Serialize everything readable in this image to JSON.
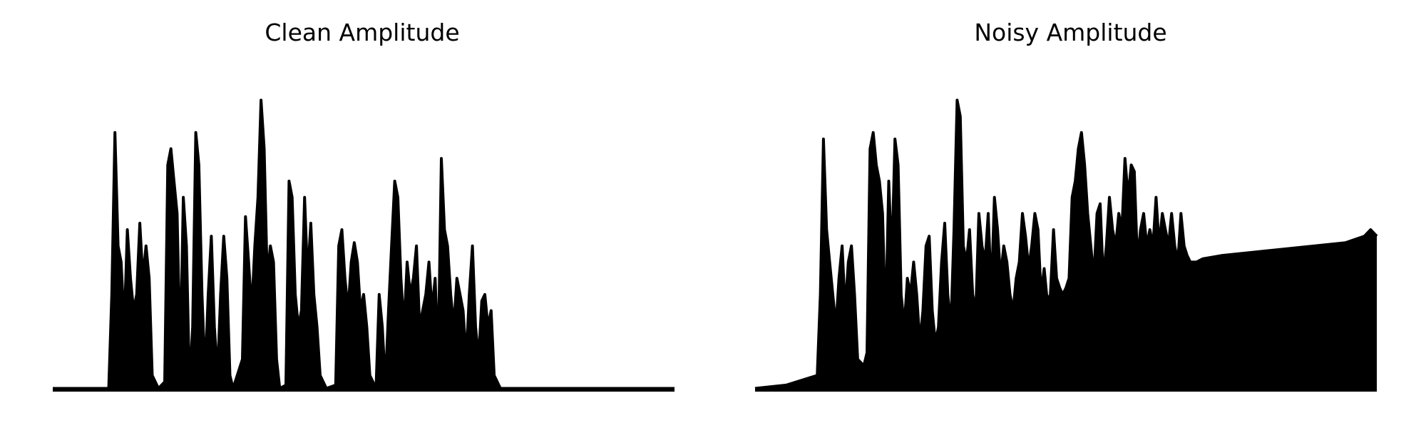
{
  "chart_data": [
    {
      "type": "line",
      "title": "Clean Amplitude",
      "xlabel": "",
      "ylabel": "",
      "axes_visible": false,
      "grid": false,
      "ylim": [
        0,
        1
      ],
      "color": "#000000",
      "points": [
        [
          0,
          0.01
        ],
        [
          0.09,
          0.01
        ],
        [
          0.095,
          0.3
        ],
        [
          0.1,
          0.8
        ],
        [
          0.105,
          0.45
        ],
        [
          0.11,
          0.4
        ],
        [
          0.115,
          0.2
        ],
        [
          0.12,
          0.5
        ],
        [
          0.125,
          0.35
        ],
        [
          0.13,
          0.25
        ],
        [
          0.135,
          0.3
        ],
        [
          0.14,
          0.52
        ],
        [
          0.145,
          0.35
        ],
        [
          0.15,
          0.45
        ],
        [
          0.155,
          0.35
        ],
        [
          0.16,
          0.05
        ],
        [
          0.17,
          0.01
        ],
        [
          0.18,
          0.03
        ],
        [
          0.185,
          0.7
        ],
        [
          0.19,
          0.75
        ],
        [
          0.195,
          0.65
        ],
        [
          0.2,
          0.55
        ],
        [
          0.205,
          0.1
        ],
        [
          0.21,
          0.6
        ],
        [
          0.215,
          0.45
        ],
        [
          0.22,
          0.02
        ],
        [
          0.225,
          0.2
        ],
        [
          0.23,
          0.8
        ],
        [
          0.235,
          0.7
        ],
        [
          0.24,
          0.3
        ],
        [
          0.245,
          0.05
        ],
        [
          0.25,
          0.3
        ],
        [
          0.255,
          0.48
        ],
        [
          0.26,
          0.2
        ],
        [
          0.265,
          0.05
        ],
        [
          0.27,
          0.3
        ],
        [
          0.275,
          0.48
        ],
        [
          0.28,
          0.35
        ],
        [
          0.285,
          0.05
        ],
        [
          0.29,
          0.01
        ],
        [
          0.305,
          0.1
        ],
        [
          0.31,
          0.54
        ],
        [
          0.315,
          0.4
        ],
        [
          0.32,
          0.25
        ],
        [
          0.325,
          0.45
        ],
        [
          0.33,
          0.6
        ],
        [
          0.335,
          0.9
        ],
        [
          0.34,
          0.75
        ],
        [
          0.345,
          0.35
        ],
        [
          0.35,
          0.45
        ],
        [
          0.355,
          0.4
        ],
        [
          0.36,
          0.1
        ],
        [
          0.365,
          0.01
        ],
        [
          0.375,
          0.02
        ],
        [
          0.38,
          0.65
        ],
        [
          0.385,
          0.6
        ],
        [
          0.39,
          0.3
        ],
        [
          0.395,
          0.2
        ],
        [
          0.4,
          0.25
        ],
        [
          0.405,
          0.6
        ],
        [
          0.41,
          0.35
        ],
        [
          0.415,
          0.52
        ],
        [
          0.42,
          0.3
        ],
        [
          0.425,
          0.2
        ],
        [
          0.43,
          0.05
        ],
        [
          0.44,
          0.01
        ],
        [
          0.455,
          0.02
        ],
        [
          0.46,
          0.45
        ],
        [
          0.465,
          0.5
        ],
        [
          0.47,
          0.35
        ],
        [
          0.475,
          0.25
        ],
        [
          0.48,
          0.4
        ],
        [
          0.485,
          0.46
        ],
        [
          0.49,
          0.4
        ],
        [
          0.495,
          0.25
        ],
        [
          0.5,
          0.3
        ],
        [
          0.505,
          0.2
        ],
        [
          0.51,
          0.05
        ],
        [
          0.52,
          0.01
        ],
        [
          0.525,
          0.3
        ],
        [
          0.53,
          0.2
        ],
        [
          0.535,
          0.02
        ],
        [
          0.54,
          0.25
        ],
        [
          0.545,
          0.45
        ],
        [
          0.55,
          0.65
        ],
        [
          0.555,
          0.6
        ],
        [
          0.56,
          0.35
        ],
        [
          0.565,
          0.2
        ],
        [
          0.57,
          0.4
        ],
        [
          0.575,
          0.3
        ],
        [
          0.58,
          0.35
        ],
        [
          0.585,
          0.45
        ],
        [
          0.59,
          0.2
        ],
        [
          0.595,
          0.25
        ],
        [
          0.6,
          0.3
        ],
        [
          0.605,
          0.4
        ],
        [
          0.61,
          0.25
        ],
        [
          0.615,
          0.35
        ],
        [
          0.62,
          0.1
        ],
        [
          0.625,
          0.72
        ],
        [
          0.63,
          0.5
        ],
        [
          0.635,
          0.45
        ],
        [
          0.64,
          0.3
        ],
        [
          0.645,
          0.2
        ],
        [
          0.65,
          0.35
        ],
        [
          0.655,
          0.3
        ],
        [
          0.66,
          0.25
        ],
        [
          0.665,
          0.1
        ],
        [
          0.67,
          0.3
        ],
        [
          0.675,
          0.45
        ],
        [
          0.68,
          0.2
        ],
        [
          0.685,
          0.1
        ],
        [
          0.69,
          0.28
        ],
        [
          0.695,
          0.3
        ],
        [
          0.7,
          0.2
        ],
        [
          0.705,
          0.25
        ],
        [
          0.71,
          0.05
        ],
        [
          0.72,
          0.01
        ],
        [
          1,
          0.01
        ]
      ]
    },
    {
      "type": "line",
      "title": "Noisy Amplitude",
      "xlabel": "",
      "ylabel": "",
      "axes_visible": false,
      "grid": false,
      "ylim": [
        0,
        1
      ],
      "color": "#000000",
      "fill_floor": [
        [
          0,
          0
        ],
        [
          0.1,
          0.04
        ],
        [
          0.2,
          0.08
        ],
        [
          0.3,
          0.12
        ],
        [
          0.4,
          0.16
        ],
        [
          0.5,
          0.2
        ],
        [
          0.6,
          0.25
        ],
        [
          0.7,
          0.3
        ],
        [
          0.8,
          0.35
        ],
        [
          0.9,
          0.38
        ],
        [
          1,
          0.4
        ]
      ],
      "points": [
        [
          0,
          0.01
        ],
        [
          0.05,
          0.02
        ],
        [
          0.1,
          0.05
        ],
        [
          0.105,
          0.3
        ],
        [
          0.11,
          0.78
        ],
        [
          0.115,
          0.5
        ],
        [
          0.12,
          0.4
        ],
        [
          0.125,
          0.3
        ],
        [
          0.13,
          0.2
        ],
        [
          0.135,
          0.35
        ],
        [
          0.14,
          0.45
        ],
        [
          0.145,
          0.25
        ],
        [
          0.15,
          0.4
        ],
        [
          0.155,
          0.45
        ],
        [
          0.16,
          0.3
        ],
        [
          0.165,
          0.1
        ],
        [
          0.175,
          0.08
        ],
        [
          0.18,
          0.12
        ],
        [
          0.185,
          0.75
        ],
        [
          0.19,
          0.8
        ],
        [
          0.195,
          0.7
        ],
        [
          0.2,
          0.65
        ],
        [
          0.205,
          0.55
        ],
        [
          0.21,
          0.2
        ],
        [
          0.215,
          0.65
        ],
        [
          0.22,
          0.4
        ],
        [
          0.225,
          0.78
        ],
        [
          0.23,
          0.7
        ],
        [
          0.235,
          0.3
        ],
        [
          0.24,
          0.2
        ],
        [
          0.245,
          0.35
        ],
        [
          0.25,
          0.3
        ],
        [
          0.255,
          0.4
        ],
        [
          0.26,
          0.3
        ],
        [
          0.265,
          0.15
        ],
        [
          0.27,
          0.25
        ],
        [
          0.275,
          0.45
        ],
        [
          0.28,
          0.48
        ],
        [
          0.285,
          0.25
        ],
        [
          0.29,
          0.15
        ],
        [
          0.295,
          0.2
        ],
        [
          0.3,
          0.4
        ],
        [
          0.305,
          0.52
        ],
        [
          0.31,
          0.3
        ],
        [
          0.315,
          0.2
        ],
        [
          0.32,
          0.5
        ],
        [
          0.325,
          0.9
        ],
        [
          0.33,
          0.85
        ],
        [
          0.335,
          0.45
        ],
        [
          0.34,
          0.4
        ],
        [
          0.345,
          0.5
        ],
        [
          0.35,
          0.3
        ],
        [
          0.355,
          0.25
        ],
        [
          0.36,
          0.55
        ],
        [
          0.365,
          0.45
        ],
        [
          0.37,
          0.4
        ],
        [
          0.375,
          0.55
        ],
        [
          0.38,
          0.3
        ],
        [
          0.385,
          0.6
        ],
        [
          0.39,
          0.5
        ],
        [
          0.395,
          0.35
        ],
        [
          0.4,
          0.45
        ],
        [
          0.405,
          0.4
        ],
        [
          0.41,
          0.3
        ],
        [
          0.415,
          0.25
        ],
        [
          0.42,
          0.35
        ],
        [
          0.425,
          0.4
        ],
        [
          0.43,
          0.55
        ],
        [
          0.435,
          0.48
        ],
        [
          0.44,
          0.38
        ],
        [
          0.445,
          0.45
        ],
        [
          0.45,
          0.55
        ],
        [
          0.455,
          0.5
        ],
        [
          0.46,
          0.3
        ],
        [
          0.465,
          0.38
        ],
        [
          0.47,
          0.28
        ],
        [
          0.475,
          0.3
        ],
        [
          0.48,
          0.5
        ],
        [
          0.485,
          0.35
        ],
        [
          0.49,
          0.32
        ],
        [
          0.495,
          0.3
        ],
        [
          0.5,
          0.32
        ],
        [
          0.505,
          0.35
        ],
        [
          0.51,
          0.6
        ],
        [
          0.515,
          0.65
        ],
        [
          0.52,
          0.75
        ],
        [
          0.525,
          0.8
        ],
        [
          0.53,
          0.7
        ],
        [
          0.535,
          0.55
        ],
        [
          0.54,
          0.45
        ],
        [
          0.545,
          0.35
        ],
        [
          0.55,
          0.55
        ],
        [
          0.555,
          0.58
        ],
        [
          0.56,
          0.35
        ],
        [
          0.565,
          0.45
        ],
        [
          0.57,
          0.6
        ],
        [
          0.575,
          0.5
        ],
        [
          0.58,
          0.45
        ],
        [
          0.585,
          0.55
        ],
        [
          0.59,
          0.5
        ],
        [
          0.595,
          0.72
        ],
        [
          0.6,
          0.6
        ],
        [
          0.605,
          0.7
        ],
        [
          0.61,
          0.68
        ],
        [
          0.615,
          0.4
        ],
        [
          0.62,
          0.5
        ],
        [
          0.625,
          0.55
        ],
        [
          0.63,
          0.45
        ],
        [
          0.635,
          0.5
        ],
        [
          0.64,
          0.45
        ],
        [
          0.645,
          0.6
        ],
        [
          0.65,
          0.45
        ],
        [
          0.655,
          0.55
        ],
        [
          0.66,
          0.5
        ],
        [
          0.665,
          0.45
        ],
        [
          0.67,
          0.55
        ],
        [
          0.675,
          0.45
        ],
        [
          0.68,
          0.4
        ],
        [
          0.685,
          0.55
        ],
        [
          0.69,
          0.45
        ],
        [
          0.695,
          0.42
        ],
        [
          0.7,
          0.4
        ],
        [
          0.71,
          0.4
        ],
        [
          0.72,
          0.41
        ],
        [
          0.75,
          0.42
        ],
        [
          0.8,
          0.43
        ],
        [
          0.85,
          0.44
        ],
        [
          0.9,
          0.45
        ],
        [
          0.95,
          0.46
        ],
        [
          0.98,
          0.48
        ],
        [
          0.99,
          0.5
        ],
        [
          1,
          0.48
        ]
      ]
    }
  ]
}
